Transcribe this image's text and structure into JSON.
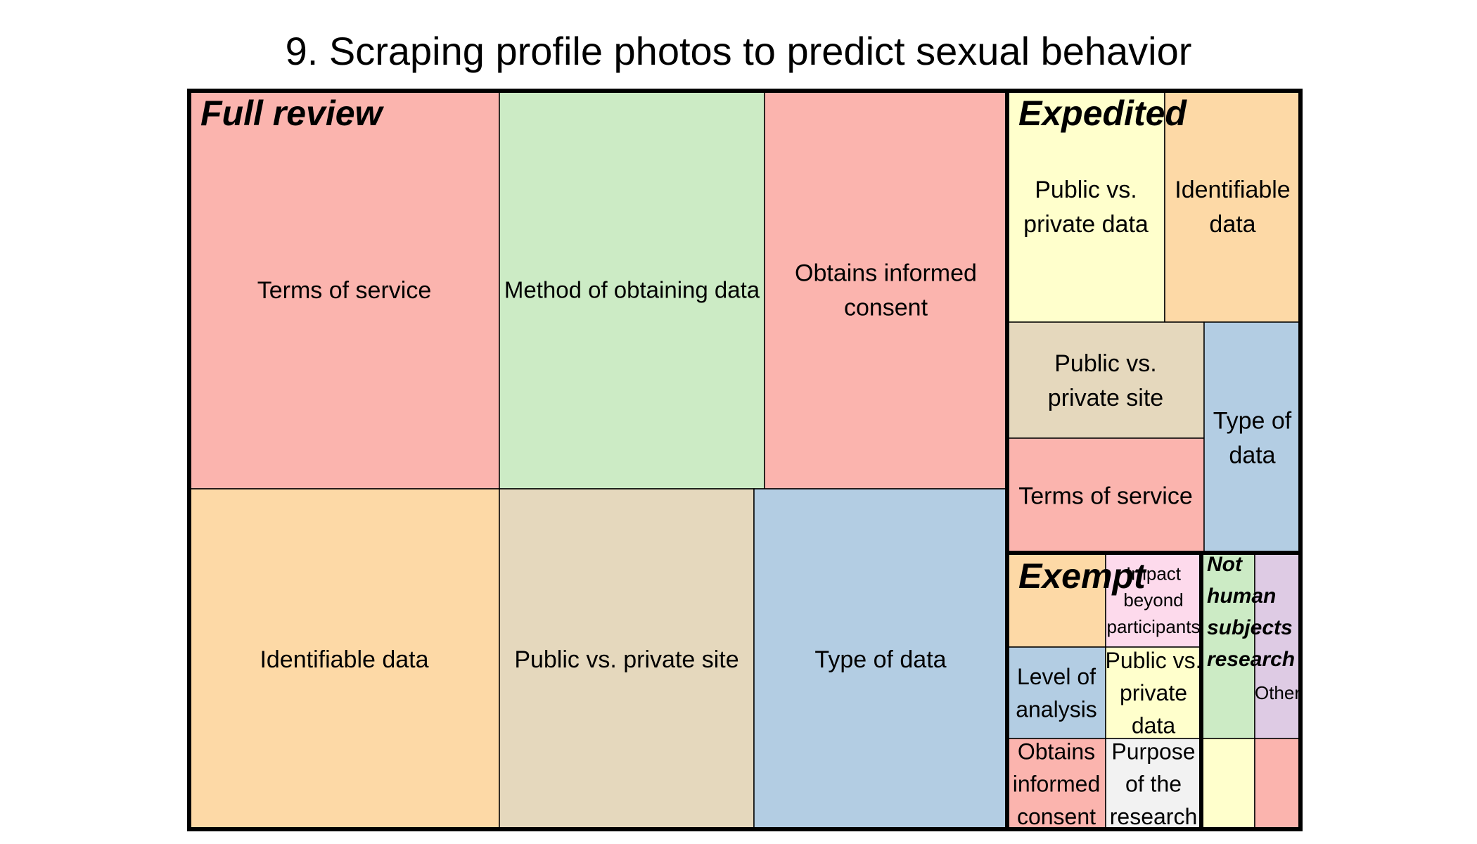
{
  "title": "9. Scraping profile photos to predict sexual behavior",
  "colors": {
    "red": "#fbb4ae",
    "green": "#ccebc5",
    "orange": "#fdd9a6",
    "tan": "#e5d8bd",
    "blue": "#b3cde3",
    "yellow": "#ffffcc",
    "pink": "#fddaec",
    "purple": "#decbe4",
    "gray": "#f2f2f2"
  },
  "chart_data": {
    "type": "treemap",
    "title": "9. Scraping profile photos to predict sexual behavior",
    "groups": [
      {
        "name": "Full review",
        "items": [
          {
            "label": "Terms of service",
            "color": "red"
          },
          {
            "label": "Identifiable data",
            "color": "orange"
          },
          {
            "label": "Method of obtaining data",
            "color": "green"
          },
          {
            "label": "Obtains informed consent",
            "color": "red"
          },
          {
            "label": "Public vs. private site",
            "color": "tan"
          },
          {
            "label": "Type of data",
            "color": "blue"
          }
        ]
      },
      {
        "name": "Expedited",
        "items": [
          {
            "label": "Public vs. private data",
            "color": "yellow"
          },
          {
            "label": "Identifiable data",
            "color": "orange"
          },
          {
            "label": "Public vs. private site",
            "color": "tan"
          },
          {
            "label": "Terms of service",
            "color": "red"
          },
          {
            "label": "Type of data",
            "color": "blue"
          }
        ]
      },
      {
        "name": "Exempt",
        "items": [
          {
            "label": "",
            "color": "orange"
          },
          {
            "label": "Impact beyond participants",
            "color": "pink"
          },
          {
            "label": "Level of analysis",
            "color": "blue"
          },
          {
            "label": "Public vs. private data",
            "color": "yellow"
          },
          {
            "label": "Obtains informed consent",
            "color": "red"
          },
          {
            "label": "Purpose of the research",
            "color": "gray"
          }
        ]
      },
      {
        "name": "Not human subjects research",
        "items": [
          {
            "label": "",
            "color": "green"
          },
          {
            "label": "Other",
            "color": "purple"
          },
          {
            "label": "",
            "color": "yellow"
          },
          {
            "label": "",
            "color": "red"
          }
        ]
      }
    ]
  }
}
